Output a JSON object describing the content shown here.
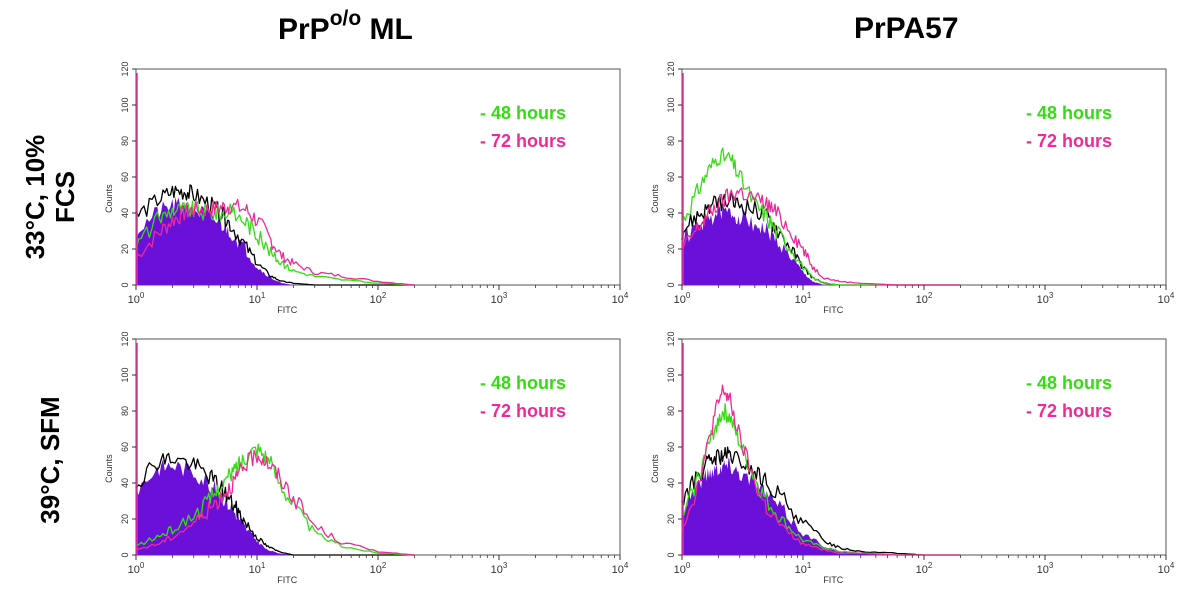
{
  "columns": {
    "left": {
      "base": "PrP",
      "sup": "o/o",
      "rest": " ML"
    },
    "right": {
      "label": "PrPA57"
    }
  },
  "rows": {
    "top": {
      "line1": "33°C, 10%",
      "line2": "FCS"
    },
    "bottom": {
      "line1": "39°C, SFM"
    }
  },
  "legend": {
    "green": {
      "label": "- 48 hours",
      "color": "#33dd11"
    },
    "pink": {
      "label": "- 72 hours",
      "color": "#ee2a96"
    }
  },
  "colors": {
    "filled": "#6a10d8",
    "control_line": "#000000"
  },
  "chart_data": [
    {
      "type": "area",
      "panel": "PrPo/o ML, 33°C 10% FCS",
      "xlabel": "FITC",
      "ylabel": "Counts",
      "xscale": "log",
      "xlim": [
        1,
        10000
      ],
      "ylim": [
        0,
        120
      ],
      "x_tick_labels": [
        "10^0",
        "10^1",
        "10^2",
        "10^3",
        "10^4"
      ],
      "y_tick_labels": [
        "0",
        "20",
        "40",
        "60",
        "80",
        "100",
        "120"
      ],
      "x": [
        1,
        1.5,
        2,
        2.5,
        3,
        4,
        5,
        6,
        8,
        10,
        13,
        16,
        20,
        30,
        50,
        100,
        200
      ],
      "series": [
        {
          "name": "- 48 hours",
          "values": [
            22,
            36,
            42,
            42,
            42,
            40,
            40,
            40,
            36,
            28,
            18,
            12,
            8,
            5,
            3,
            1,
            0
          ]
        },
        {
          "name": "- 72 hours",
          "values": [
            15,
            28,
            36,
            40,
            42,
            42,
            43,
            44,
            42,
            36,
            25,
            16,
            12,
            7,
            5,
            2,
            0
          ]
        },
        {
          "values": [
            38,
            47,
            52,
            52,
            50,
            45,
            40,
            34,
            22,
            12,
            5,
            2,
            1,
            0,
            0,
            0,
            0
          ]
        },
        {
          "values": [
            30,
            40,
            44,
            44,
            42,
            38,
            34,
            30,
            20,
            10,
            4,
            1,
            0,
            0,
            0,
            0,
            0
          ]
        }
      ]
    },
    {
      "type": "area",
      "panel": "PrPA57, 33°C 10% FCS",
      "xlabel": "FITC",
      "ylabel": "Counts",
      "xscale": "log",
      "xlim": [
        1,
        10000
      ],
      "ylim": [
        0,
        120
      ],
      "x_tick_labels": [
        "10^0",
        "10^1",
        "10^2",
        "10^3",
        "10^4"
      ],
      "y_tick_labels": [
        "0",
        "20",
        "40",
        "60",
        "80",
        "100",
        "120"
      ],
      "x": [
        1,
        1.3,
        1.6,
        2,
        2.5,
        3,
        4,
        5,
        6,
        8,
        10,
        12,
        15,
        20,
        30,
        60,
        200
      ],
      "series": [
        {
          "name": "- 48 hours",
          "values": [
            35,
            50,
            62,
            72,
            70,
            60,
            45,
            38,
            30,
            20,
            10,
            4,
            1,
            0,
            0,
            0,
            0
          ]
        },
        {
          "name": "- 72 hours",
          "values": [
            20,
            30,
            38,
            45,
            50,
            52,
            48,
            45,
            40,
            30,
            20,
            10,
            4,
            2,
            1,
            0,
            0
          ]
        },
        {
          "values": [
            30,
            38,
            42,
            46,
            46,
            45,
            42,
            38,
            32,
            20,
            10,
            4,
            1,
            0,
            0,
            0,
            0
          ]
        },
        {
          "values": [
            25,
            32,
            36,
            40,
            40,
            38,
            34,
            30,
            25,
            15,
            7,
            2,
            0,
            0,
            0,
            0,
            0
          ]
        }
      ]
    },
    {
      "type": "area",
      "panel": "PrPo/o ML, 39°C SFM",
      "xlabel": "FITC",
      "ylabel": "Counts",
      "xscale": "log",
      "xlim": [
        1,
        10000
      ],
      "ylim": [
        0,
        120
      ],
      "x_tick_labels": [
        "10^0",
        "10^1",
        "10^2",
        "10^3",
        "10^4"
      ],
      "y_tick_labels": [
        "0",
        "20",
        "40",
        "60",
        "80",
        "100",
        "120"
      ],
      "x": [
        1,
        1.5,
        2,
        3,
        4,
        5,
        6,
        7,
        8,
        10,
        12,
        15,
        20,
        30,
        50,
        100,
        200
      ],
      "series": [
        {
          "name": "- 48 hours",
          "values": [
            5,
            10,
            14,
            22,
            30,
            38,
            44,
            50,
            55,
            60,
            55,
            42,
            28,
            12,
            5,
            1,
            0
          ]
        },
        {
          "name": "- 72 hours",
          "values": [
            3,
            6,
            10,
            18,
            25,
            32,
            38,
            44,
            50,
            56,
            52,
            44,
            32,
            16,
            7,
            2,
            0
          ]
        },
        {
          "values": [
            40,
            52,
            54,
            50,
            44,
            38,
            30,
            24,
            18,
            10,
            5,
            2,
            0,
            0,
            0,
            0,
            0
          ]
        },
        {
          "values": [
            36,
            48,
            50,
            46,
            40,
            34,
            27,
            21,
            15,
            8,
            3,
            1,
            0,
            0,
            0,
            0,
            0
          ]
        }
      ]
    },
    {
      "type": "area",
      "panel": "PrPA57, 39°C SFM",
      "xlabel": "FITC",
      "ylabel": "Counts",
      "xscale": "log",
      "xlim": [
        1,
        10000
      ],
      "ylim": [
        0,
        120
      ],
      "x_tick_labels": [
        "10^0",
        "10^1",
        "10^2",
        "10^3",
        "10^4"
      ],
      "y_tick_labels": [
        "0",
        "20",
        "40",
        "60",
        "80",
        "100",
        "120"
      ],
      "x": [
        1,
        1.3,
        1.6,
        1.9,
        2.2,
        2.5,
        3,
        4,
        5,
        7,
        10,
        15,
        20,
        30,
        60,
        100,
        200
      ],
      "series": [
        {
          "name": "- 48 hours",
          "values": [
            20,
            40,
            58,
            72,
            80,
            76,
            62,
            42,
            30,
            18,
            8,
            4,
            2,
            1,
            0,
            0,
            0
          ]
        },
        {
          "name": "- 72 hours",
          "values": [
            15,
            35,
            58,
            80,
            92,
            85,
            65,
            40,
            26,
            14,
            6,
            3,
            1,
            1,
            0,
            0,
            0
          ]
        },
        {
          "values": [
            30,
            42,
            50,
            54,
            55,
            55,
            52,
            46,
            40,
            30,
            18,
            8,
            4,
            2,
            1,
            0,
            0
          ]
        },
        {
          "values": [
            25,
            38,
            45,
            48,
            50,
            50,
            46,
            40,
            34,
            24,
            12,
            5,
            2,
            1,
            0,
            0,
            0
          ]
        }
      ]
    }
  ]
}
